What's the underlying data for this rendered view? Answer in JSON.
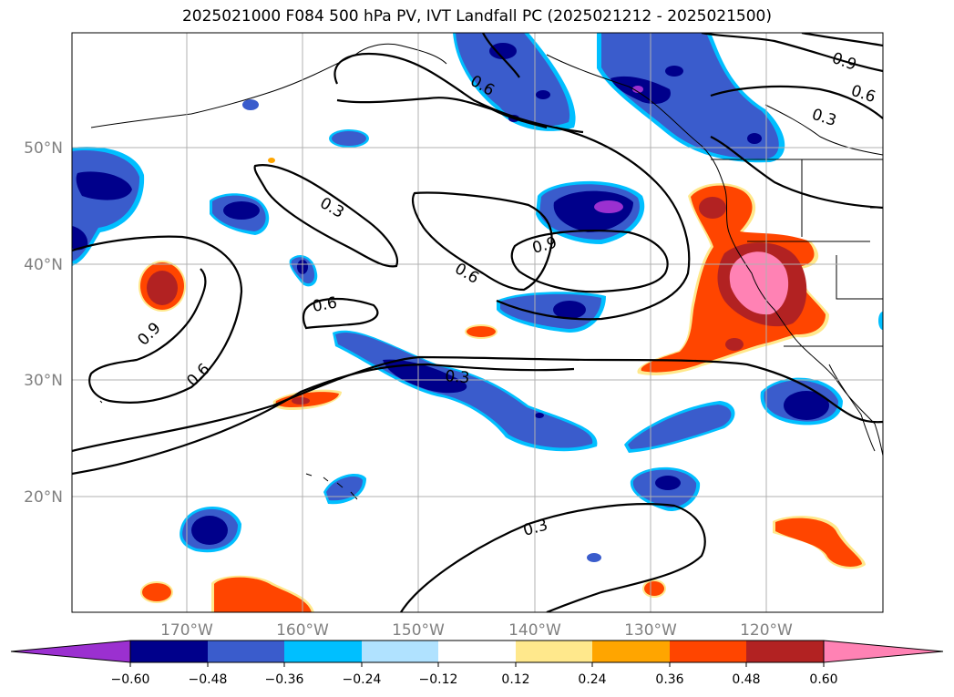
{
  "title": "2025021000 F084 500 hPa PV, IVT Landfall PC (2025021212 - 2025021500)",
  "axes": {
    "lat_labels": [
      "50°N",
      "40°N",
      "30°N",
      "20°N"
    ],
    "lon_labels": [
      "170°W",
      "160°W",
      "150°W",
      "140°W",
      "130°W",
      "120°W"
    ]
  },
  "contour_labels": [
    "0.9",
    "0.6",
    "0.3",
    "0.3",
    "0.6",
    "0.9",
    "0.6",
    "0.6",
    "0.9",
    "0.6",
    "0.3",
    "0.3"
  ],
  "colorbar": {
    "ticks": [
      "−0.60",
      "−0.48",
      "−0.36",
      "−0.24",
      "−0.12",
      "0.12",
      "0.24",
      "0.36",
      "0.48",
      "0.60"
    ],
    "colors": [
      "#9b30d0",
      "#00008b",
      "#3a5ccc",
      "#00bfff",
      "#b0e2ff",
      "#ffffff",
      "#ffe88c",
      "#ffa500",
      "#ff4500",
      "#b22222",
      "#ff82b4"
    ]
  },
  "colors": {
    "purple": "#9b30d0",
    "navy": "#00008b",
    "royal_blue": "#3a5ccc",
    "sky_blue": "#00bfff",
    "light_blue": "#b0e2ff",
    "light_yellow": "#ffe88c",
    "orange": "#ffa500",
    "orange_red": "#ff4500",
    "firebrick": "#b22222",
    "pink": "#ff82b4"
  }
}
